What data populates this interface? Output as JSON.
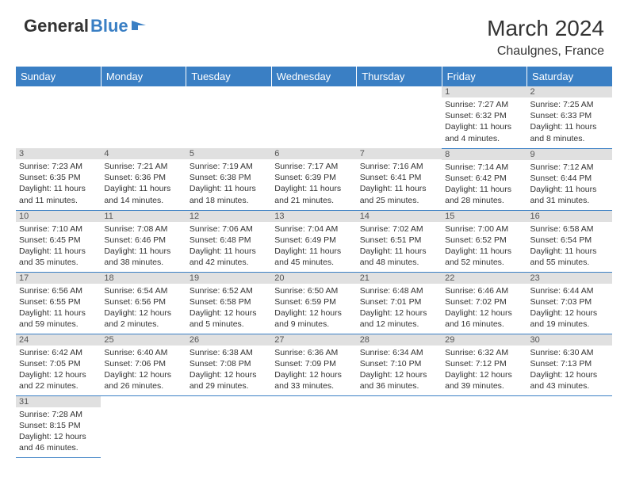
{
  "logo": {
    "text1": "General",
    "text2": "Blue"
  },
  "header": {
    "month": "March 2024",
    "location": "Chaulgnes, France"
  },
  "colors": {
    "header_bg": "#3a7fc4",
    "daynum_bg": "#e0e0e0",
    "border": "#3a7fc4",
    "text": "#333333"
  },
  "weekdays": [
    "Sunday",
    "Monday",
    "Tuesday",
    "Wednesday",
    "Thursday",
    "Friday",
    "Saturday"
  ],
  "weeks": [
    [
      null,
      null,
      null,
      null,
      null,
      {
        "n": "1",
        "sr": "7:27 AM",
        "ss": "6:32 PM",
        "dl": "11 hours and 4 minutes."
      },
      {
        "n": "2",
        "sr": "7:25 AM",
        "ss": "6:33 PM",
        "dl": "11 hours and 8 minutes."
      }
    ],
    [
      {
        "n": "3",
        "sr": "7:23 AM",
        "ss": "6:35 PM",
        "dl": "11 hours and 11 minutes."
      },
      {
        "n": "4",
        "sr": "7:21 AM",
        "ss": "6:36 PM",
        "dl": "11 hours and 14 minutes."
      },
      {
        "n": "5",
        "sr": "7:19 AM",
        "ss": "6:38 PM",
        "dl": "11 hours and 18 minutes."
      },
      {
        "n": "6",
        "sr": "7:17 AM",
        "ss": "6:39 PM",
        "dl": "11 hours and 21 minutes."
      },
      {
        "n": "7",
        "sr": "7:16 AM",
        "ss": "6:41 PM",
        "dl": "11 hours and 25 minutes."
      },
      {
        "n": "8",
        "sr": "7:14 AM",
        "ss": "6:42 PM",
        "dl": "11 hours and 28 minutes."
      },
      {
        "n": "9",
        "sr": "7:12 AM",
        "ss": "6:44 PM",
        "dl": "11 hours and 31 minutes."
      }
    ],
    [
      {
        "n": "10",
        "sr": "7:10 AM",
        "ss": "6:45 PM",
        "dl": "11 hours and 35 minutes."
      },
      {
        "n": "11",
        "sr": "7:08 AM",
        "ss": "6:46 PM",
        "dl": "11 hours and 38 minutes."
      },
      {
        "n": "12",
        "sr": "7:06 AM",
        "ss": "6:48 PM",
        "dl": "11 hours and 42 minutes."
      },
      {
        "n": "13",
        "sr": "7:04 AM",
        "ss": "6:49 PM",
        "dl": "11 hours and 45 minutes."
      },
      {
        "n": "14",
        "sr": "7:02 AM",
        "ss": "6:51 PM",
        "dl": "11 hours and 48 minutes."
      },
      {
        "n": "15",
        "sr": "7:00 AM",
        "ss": "6:52 PM",
        "dl": "11 hours and 52 minutes."
      },
      {
        "n": "16",
        "sr": "6:58 AM",
        "ss": "6:54 PM",
        "dl": "11 hours and 55 minutes."
      }
    ],
    [
      {
        "n": "17",
        "sr": "6:56 AM",
        "ss": "6:55 PM",
        "dl": "11 hours and 59 minutes."
      },
      {
        "n": "18",
        "sr": "6:54 AM",
        "ss": "6:56 PM",
        "dl": "12 hours and 2 minutes."
      },
      {
        "n": "19",
        "sr": "6:52 AM",
        "ss": "6:58 PM",
        "dl": "12 hours and 5 minutes."
      },
      {
        "n": "20",
        "sr": "6:50 AM",
        "ss": "6:59 PM",
        "dl": "12 hours and 9 minutes."
      },
      {
        "n": "21",
        "sr": "6:48 AM",
        "ss": "7:01 PM",
        "dl": "12 hours and 12 minutes."
      },
      {
        "n": "22",
        "sr": "6:46 AM",
        "ss": "7:02 PM",
        "dl": "12 hours and 16 minutes."
      },
      {
        "n": "23",
        "sr": "6:44 AM",
        "ss": "7:03 PM",
        "dl": "12 hours and 19 minutes."
      }
    ],
    [
      {
        "n": "24",
        "sr": "6:42 AM",
        "ss": "7:05 PM",
        "dl": "12 hours and 22 minutes."
      },
      {
        "n": "25",
        "sr": "6:40 AM",
        "ss": "7:06 PM",
        "dl": "12 hours and 26 minutes."
      },
      {
        "n": "26",
        "sr": "6:38 AM",
        "ss": "7:08 PM",
        "dl": "12 hours and 29 minutes."
      },
      {
        "n": "27",
        "sr": "6:36 AM",
        "ss": "7:09 PM",
        "dl": "12 hours and 33 minutes."
      },
      {
        "n": "28",
        "sr": "6:34 AM",
        "ss": "7:10 PM",
        "dl": "12 hours and 36 minutes."
      },
      {
        "n": "29",
        "sr": "6:32 AM",
        "ss": "7:12 PM",
        "dl": "12 hours and 39 minutes."
      },
      {
        "n": "30",
        "sr": "6:30 AM",
        "ss": "7:13 PM",
        "dl": "12 hours and 43 minutes."
      }
    ],
    [
      {
        "n": "31",
        "sr": "7:28 AM",
        "ss": "8:15 PM",
        "dl": "12 hours and 46 minutes."
      },
      null,
      null,
      null,
      null,
      null,
      null
    ]
  ],
  "labels": {
    "sunrise": "Sunrise: ",
    "sunset": "Sunset: ",
    "daylight": "Daylight: "
  }
}
